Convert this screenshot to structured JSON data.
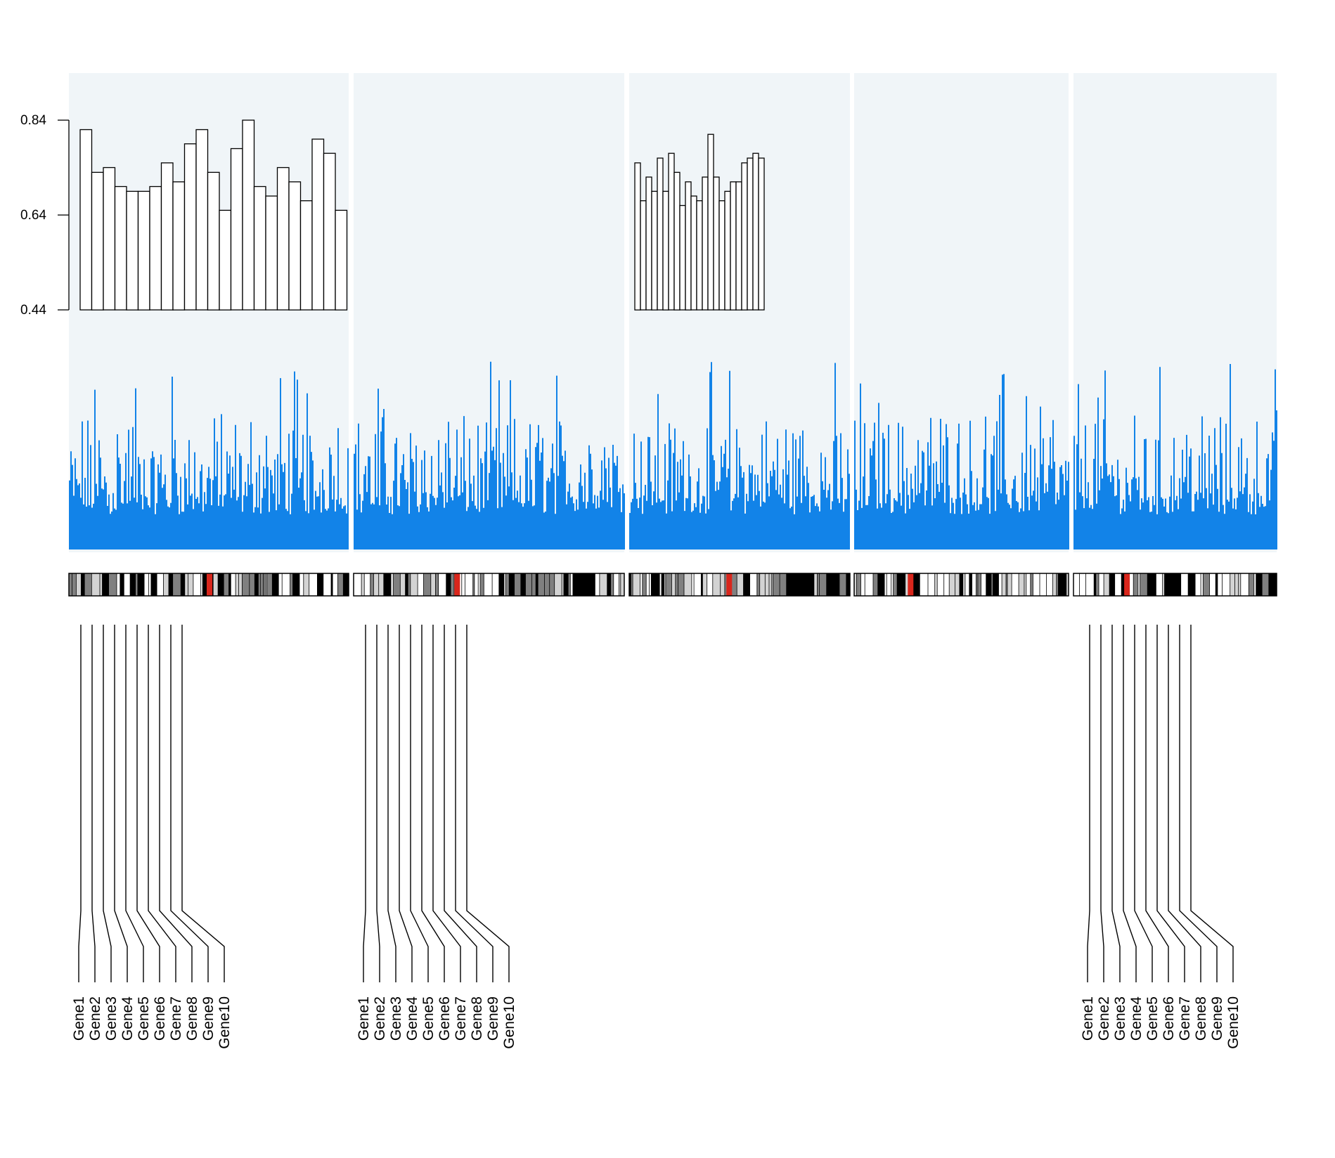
{
  "chart_data": {
    "type": "bar",
    "title": "",
    "xlabel": "",
    "ylabel": "",
    "ylim": [
      0.44,
      0.94
    ],
    "yticks": [
      "0.84",
      "0.64",
      "0.44"
    ],
    "ytick_values": [
      0.84,
      0.64,
      0.44
    ],
    "grid": false,
    "legend": "none",
    "colors": {
      "panel_background": "#f0f5f8",
      "density": "#1283e8",
      "ideogram_dark": "#000000",
      "ideogram_mid": "#808080",
      "ideogram_light": "#d3d3d3",
      "centromere": "#d9261c",
      "outline": "#000000"
    },
    "series": [
      {
        "values": [
          0.82,
          0.73,
          0.74,
          0.7,
          0.69,
          0.69,
          0.7,
          0.75,
          0.71,
          0.79,
          0.82,
          0.73,
          0.65,
          0.78,
          0.84,
          0.7,
          0.68,
          0.74,
          0.71,
          0.67,
          0.8,
          0.77,
          0.65
        ]
      },
      {
        "values": [
          0.75,
          0.67,
          0.72,
          0.69,
          0.76,
          0.69,
          0.77,
          0.73,
          0.66,
          0.71,
          0.68,
          0.67,
          0.72,
          0.81,
          0.72,
          0.67,
          0.69,
          0.71,
          0.71,
          0.75,
          0.76,
          0.77,
          0.76
        ]
      }
    ],
    "gene_labels": [
      [
        "Gene1",
        "Gene2",
        "Gene3",
        "Gene4",
        "Gene5",
        "Gene6",
        "Gene7",
        "Gene8",
        "Gene9",
        "Gene10"
      ],
      [
        "Gene1",
        "Gene2",
        "Gene3",
        "Gene4",
        "Gene5",
        "Gene6",
        "Gene7",
        "Gene8",
        "Gene9",
        "Gene10"
      ],
      [
        "Gene1",
        "Gene2",
        "Gene3",
        "Gene4",
        "Gene5",
        "Gene6",
        "Gene7",
        "Gene8",
        "Gene9",
        "Gene10"
      ]
    ]
  }
}
